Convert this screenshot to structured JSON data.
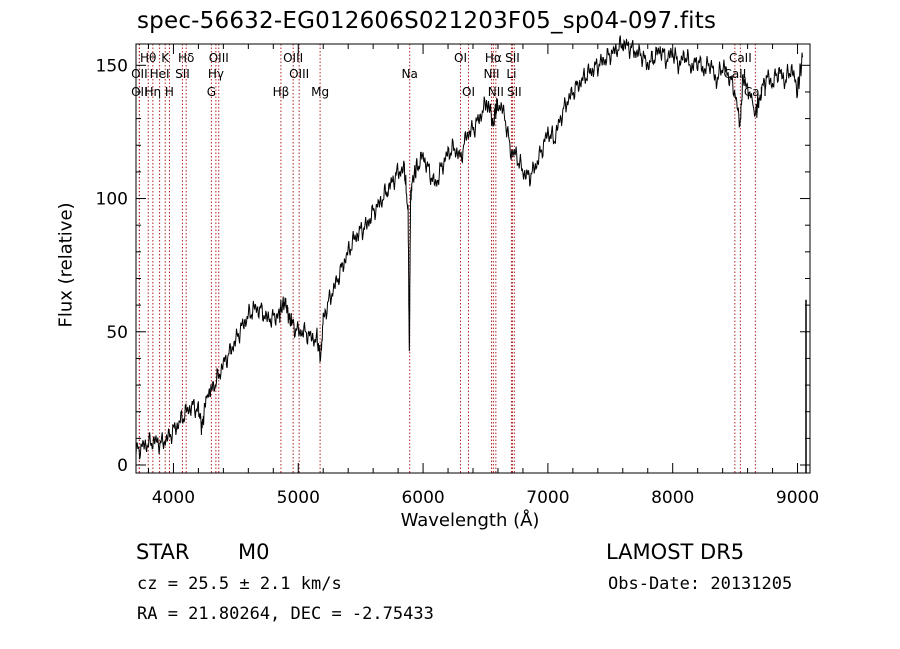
{
  "title": "spec-56632-EG012606S021203F05_sp04-097.fits",
  "info": {
    "obj_class": "STAR",
    "obj_subclass": "M0",
    "survey": "LAMOST DR5",
    "cz": "cz = 25.5 ± 2.1 km/s",
    "obs_date": "Obs-Date: 20131205",
    "radec": "RA =  21.80264, DEC =  -2.75433"
  },
  "chart_data": {
    "type": "line",
    "xlabel": "Wavelength (Å)",
    "ylabel": "Flux (relative)",
    "xlim": [
      3700,
      9100
    ],
    "ylim": [
      -3,
      158
    ],
    "xticks": [
      4000,
      5000,
      6000,
      7000,
      8000,
      9000
    ],
    "yticks": [
      0,
      50,
      100,
      150
    ],
    "line_color": "#000000",
    "marker_color": "#b22222",
    "series": [
      {
        "x": [
          3700,
          3750,
          3800,
          3850,
          3900,
          3950,
          4000,
          4050,
          4100,
          4150,
          4200,
          4230,
          4260,
          4300,
          4350,
          4400,
          4450,
          4500,
          4550,
          4600,
          4650,
          4700,
          4750,
          4800,
          4850,
          4870,
          4900,
          4920,
          4950,
          5000,
          5050,
          5100,
          5150,
          5180,
          5200,
          5250,
          5300,
          5350,
          5400,
          5450,
          5500,
          5550,
          5600,
          5650,
          5700,
          5750,
          5800,
          5850,
          5880,
          5890,
          5900,
          5910,
          5950,
          6000,
          6050,
          6100,
          6150,
          6200,
          6250,
          6300,
          6350,
          6400,
          6450,
          6500,
          6540,
          6563,
          6580,
          6600,
          6650,
          6700,
          6750,
          6800,
          6850,
          6900,
          6950,
          7000,
          7050,
          7100,
          7150,
          7200,
          7250,
          7300,
          7350,
          7400,
          7450,
          7500,
          7550,
          7600,
          7650,
          7700,
          7750,
          7800,
          7850,
          7900,
          7950,
          8000,
          8050,
          8100,
          8150,
          8200,
          8250,
          8300,
          8350,
          8400,
          8450,
          8500,
          8542,
          8560,
          8600,
          8662,
          8700,
          8750,
          8800,
          8850,
          8900,
          8950,
          9000,
          9040
        ],
        "y": [
          5,
          7,
          8,
          9,
          8,
          10,
          13,
          16,
          20,
          22,
          21,
          14,
          25,
          28,
          32,
          38,
          42,
          47,
          52,
          56,
          59,
          58,
          55,
          55,
          57,
          60,
          61,
          56,
          53,
          50,
          50,
          48,
          47,
          40,
          55,
          62,
          68,
          74,
          80,
          85,
          88,
          90,
          95,
          98,
          102,
          106,
          110,
          111,
          95,
          42,
          100,
          106,
          112,
          116,
          110,
          105,
          112,
          117,
          119,
          115,
          124,
          126,
          130,
          135,
          134,
          128,
          133,
          136,
          132,
          118,
          116,
          110,
          108,
          112,
          118,
          125,
          122,
          130,
          136,
          140,
          143,
          146,
          148,
          150,
          152,
          154,
          156,
          158,
          157,
          155,
          154,
          150,
          153,
          156,
          152,
          155,
          150,
          154,
          149,
          152,
          148,
          151,
          144,
          150,
          146,
          140,
          127,
          145,
          142,
          132,
          138,
          146,
          143,
          148,
          144,
          149,
          141,
          153
        ]
      }
    ],
    "lines": [
      {
        "label": "Hθ",
        "wave": 3798,
        "row": 0
      },
      {
        "label": "OII",
        "wave": 3727,
        "row": 1
      },
      {
        "label": "OII",
        "wave": 3727,
        "row": 2
      },
      {
        "label": "HeI",
        "wave": 3889,
        "row": 1
      },
      {
        "label": "Hη",
        "wave": 3835,
        "row": 2
      },
      {
        "label": "K",
        "wave": 3934,
        "row": 0
      },
      {
        "label": "H",
        "wave": 3968,
        "row": 2
      },
      {
        "label": "Hδ",
        "wave": 4102,
        "row": 0
      },
      {
        "label": "SII",
        "wave": 4072,
        "row": 1
      },
      {
        "label": "OIII",
        "wave": 4363,
        "row": 0
      },
      {
        "label": "Hγ",
        "wave": 4340,
        "row": 1
      },
      {
        "label": "G",
        "wave": 4304,
        "row": 2
      },
      {
        "label": "Hβ",
        "wave": 4861,
        "row": 2
      },
      {
        "label": "OIII",
        "wave": 4959,
        "row": 0
      },
      {
        "label": "OIII",
        "wave": 5007,
        "row": 1
      },
      {
        "label": "Mg",
        "wave": 5175,
        "row": 2
      },
      {
        "label": "Na",
        "wave": 5893,
        "row": 1
      },
      {
        "label": "OI",
        "wave": 6300,
        "row": 0
      },
      {
        "label": "OI",
        "wave": 6364,
        "row": 2
      },
      {
        "label": "Hα",
        "wave": 6563,
        "row": 0
      },
      {
        "label": "NII",
        "wave": 6548,
        "row": 1
      },
      {
        "label": "NII",
        "wave": 6583,
        "row": 2
      },
      {
        "label": "SII",
        "wave": 6716,
        "row": 0
      },
      {
        "label": "Li",
        "wave": 6708,
        "row": 1
      },
      {
        "label": "SII",
        "wave": 6731,
        "row": 2
      },
      {
        "label": "CaII",
        "wave": 8542,
        "row": 0
      },
      {
        "label": "CaII",
        "wave": 8498,
        "row": 1
      },
      {
        "label": "CaII",
        "wave": 8662,
        "row": 2
      }
    ]
  }
}
